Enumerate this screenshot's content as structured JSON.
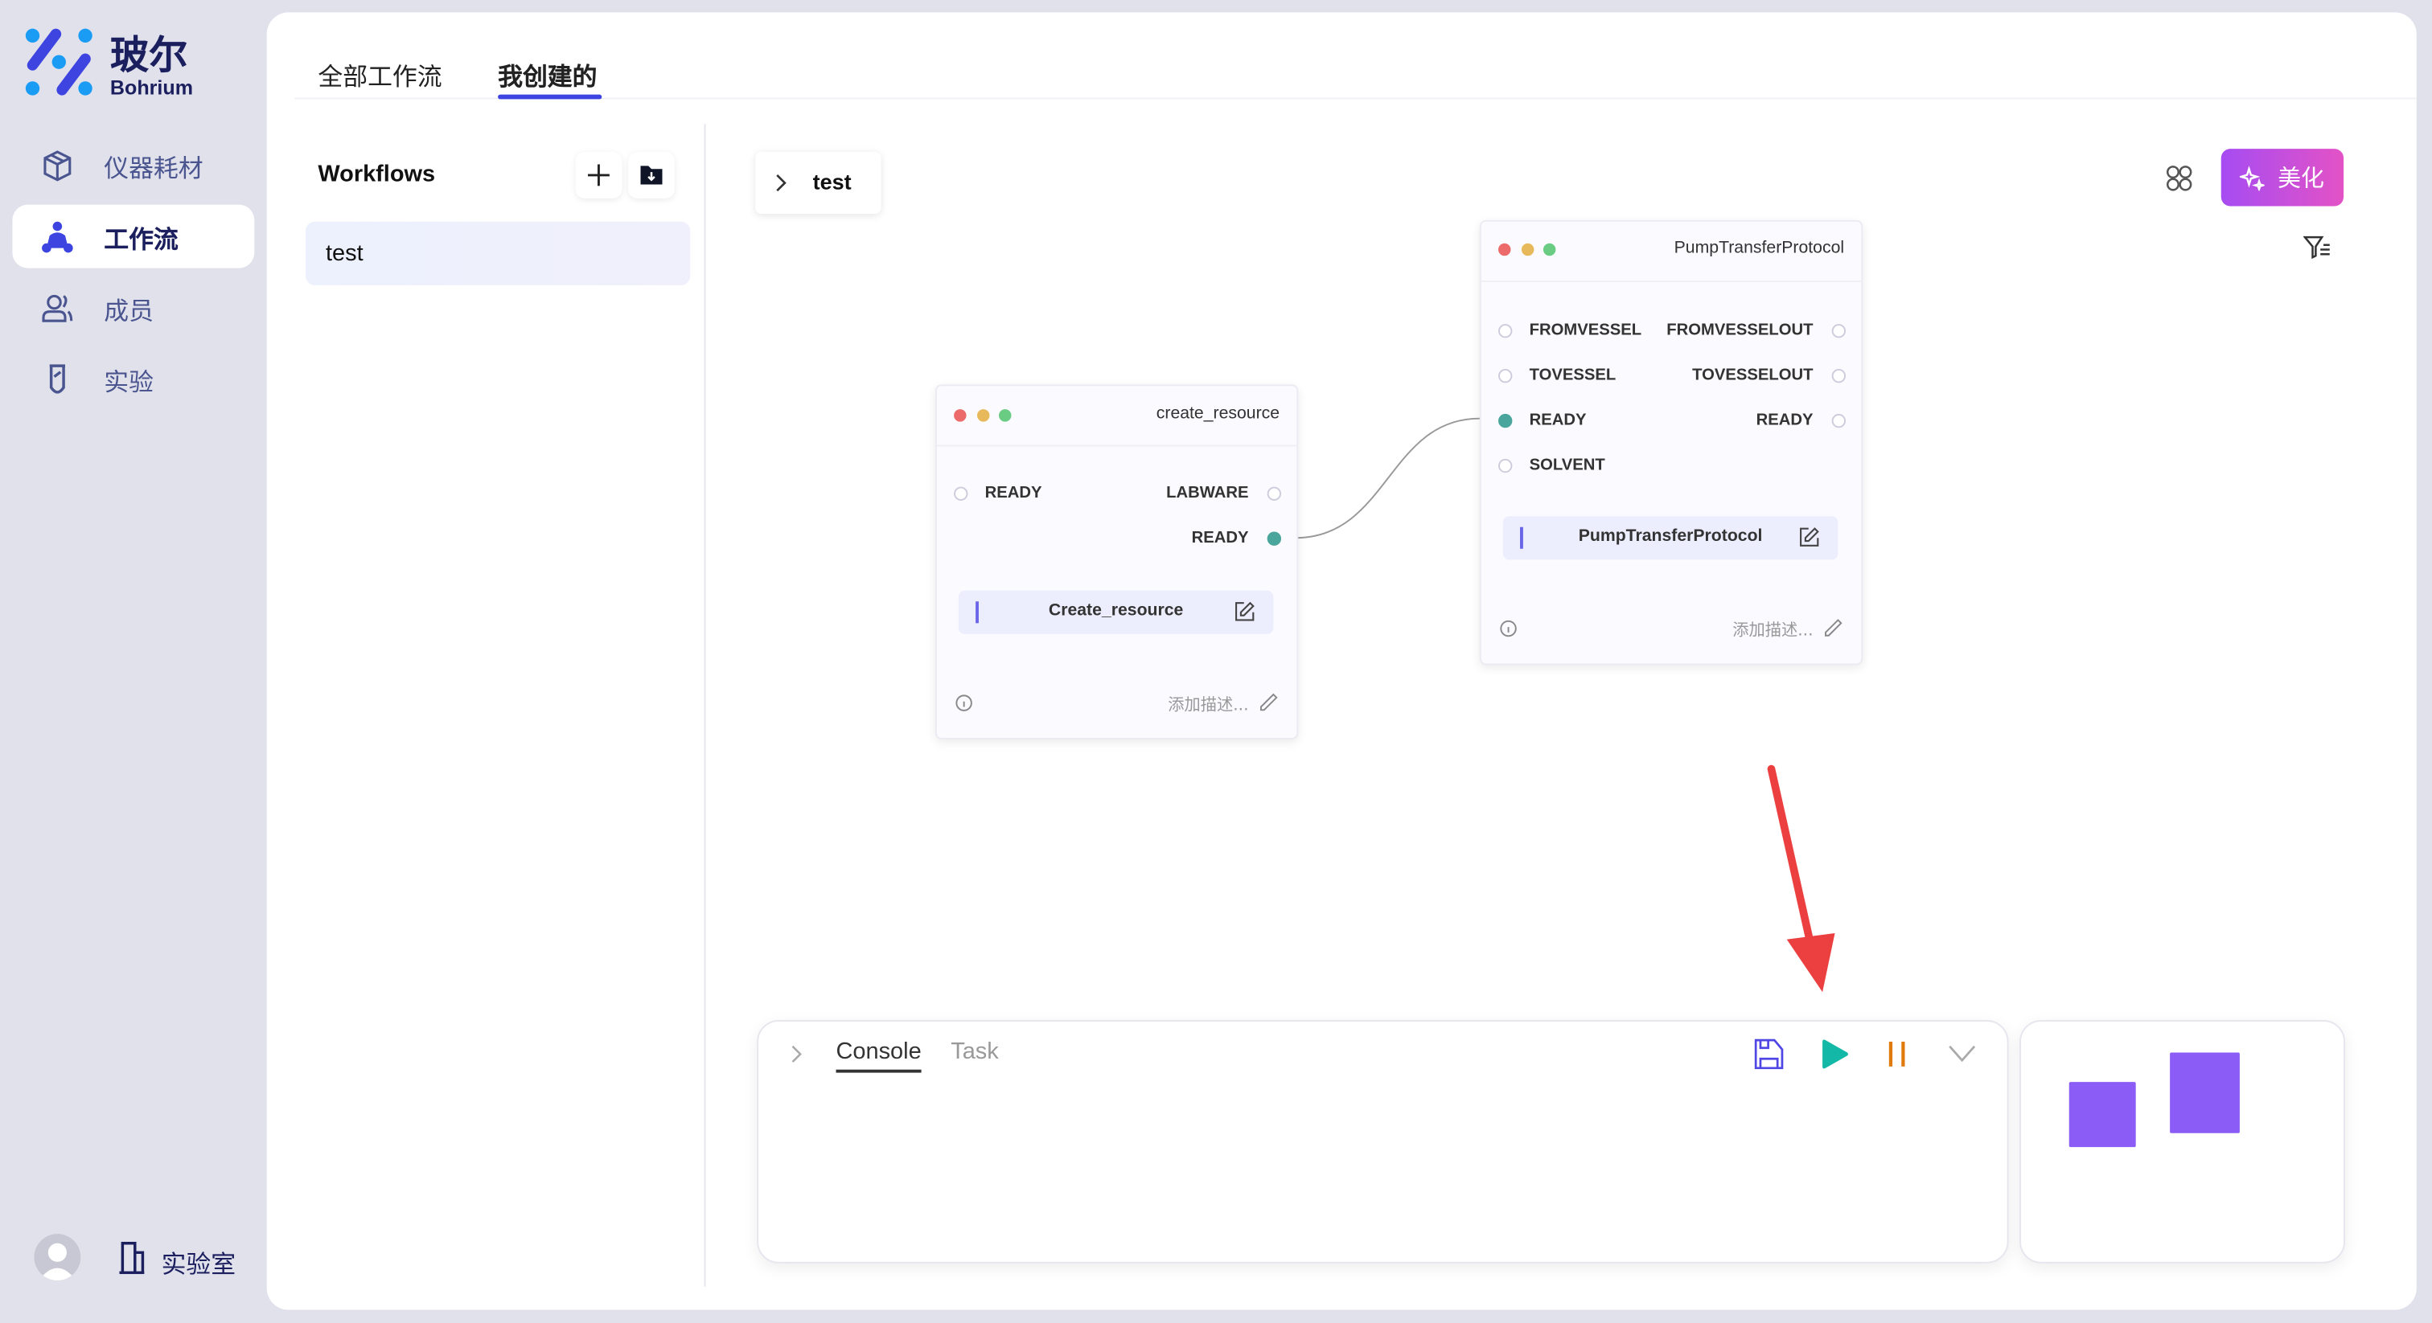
{
  "brand": {
    "name_cn": "玻尔",
    "name_en": "Bohrium"
  },
  "sidebar": {
    "items": [
      {
        "label": "仪器耗材",
        "icon": "cube-icon",
        "active": false
      },
      {
        "label": "工作流",
        "icon": "workflow-icon",
        "active": true
      },
      {
        "label": "成员",
        "icon": "members-icon",
        "active": false
      },
      {
        "label": "实验",
        "icon": "test-tube-icon",
        "active": false
      }
    ],
    "footer": {
      "lab_label": "实验室"
    }
  },
  "tabs": [
    {
      "label": "全部工作流",
      "active": false
    },
    {
      "label": "我创建的",
      "active": true
    }
  ],
  "workflows": {
    "title": "Workflows",
    "items": [
      {
        "label": "test",
        "selected": true
      }
    ]
  },
  "canvas": {
    "breadcrumb": "test",
    "beautify_label": "美化",
    "accent": "#c04fe6",
    "nodes": [
      {
        "title": "create_resource",
        "inputs": [
          "READY"
        ],
        "outputs": [
          "LABWARE",
          "READY"
        ],
        "function": "Create_resource",
        "desc_placeholder": "添加描述..."
      },
      {
        "title": "PumpTransferProtocol",
        "inputs": [
          "FROMVESSEL",
          "TOVESSEL",
          "READY",
          "SOLVENT"
        ],
        "outputs": [
          "FROMVESSELOUT",
          "TOVESSELOUT",
          "READY"
        ],
        "function": "PumpTransferProtocol",
        "desc_placeholder": "添加描述..."
      }
    ],
    "edges": [
      {
        "from": "create_resource.READY",
        "to": "PumpTransferProtocol.READY"
      }
    ]
  },
  "console": {
    "tabs": [
      {
        "label": "Console",
        "active": true
      },
      {
        "label": "Task",
        "active": false
      }
    ],
    "colors": {
      "save": "#4f46e5",
      "run": "#14b8a6",
      "pause": "#e07a0c"
    }
  }
}
